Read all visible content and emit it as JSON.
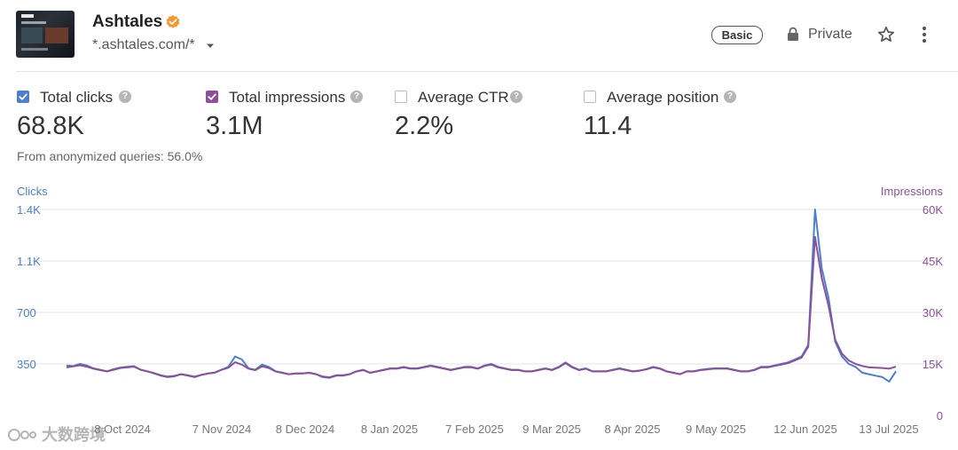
{
  "site": {
    "name": "Ashtales",
    "domain": "*.ashtales.com/*",
    "plan_badge": "Basic",
    "privacy": "Private",
    "icons": [
      "verified-badge-icon",
      "caret-down-icon",
      "lock-icon",
      "star-icon",
      "more-vertical-icon"
    ]
  },
  "metrics": [
    {
      "label": "Total clicks",
      "value": "68.8K",
      "checked": true,
      "color": "#4a7fd1"
    },
    {
      "label": "Total impressions",
      "value": "3.1M",
      "checked": true,
      "color": "#8e4f9a"
    },
    {
      "label": "Average CTR",
      "value": "2.2%",
      "checked": false
    },
    {
      "label": "Average position",
      "value": "11.4",
      "checked": false
    }
  ],
  "note": "From anonymized queries: 56.0%",
  "watermark": "大数跨境",
  "chart_data": {
    "type": "line",
    "left_axis_title": "Clicks",
    "right_axis_title": "Impressions",
    "left_ticks": [
      "350",
      "700",
      "1.1K",
      "1.4K"
    ],
    "right_ticks": [
      "0",
      "15K",
      "30K",
      "45K",
      "60K"
    ],
    "left_range": [
      0,
      1400
    ],
    "right_range": [
      0,
      60000
    ],
    "x_labels": [
      "8 Oct 2024",
      "7 Nov 2024",
      "8 Dec 2024",
      "8 Jan 2025",
      "7 Feb 2025",
      "9 Mar 2025",
      "8 Apr 2025",
      "9 May 2025",
      "12 Jun 2025",
      "13 Jul 2025"
    ],
    "series": [
      {
        "name": "Total clicks",
        "axis": "left",
        "color": "#4a7fd1",
        "values": [
          340,
          335,
          350,
          340,
          320,
          310,
          300,
          315,
          325,
          330,
          335,
          310,
          300,
          285,
          270,
          260,
          265,
          280,
          270,
          260,
          275,
          285,
          290,
          310,
          330,
          400,
          380,
          320,
          310,
          345,
          330,
          300,
          290,
          280,
          285,
          285,
          290,
          280,
          260,
          255,
          270,
          270,
          280,
          300,
          310,
          290,
          300,
          310,
          320,
          320,
          330,
          320,
          320,
          330,
          340,
          330,
          320,
          310,
          320,
          330,
          330,
          320,
          340,
          350,
          330,
          320,
          310,
          310,
          300,
          300,
          310,
          320,
          310,
          330,
          360,
          330,
          310,
          320,
          300,
          300,
          300,
          310,
          320,
          310,
          300,
          305,
          315,
          330,
          320,
          300,
          290,
          280,
          300,
          300,
          310,
          315,
          320,
          320,
          320,
          310,
          300,
          300,
          310,
          330,
          330,
          340,
          350,
          360,
          380,
          400,
          480,
          1400,
          1000,
          800,
          500,
          400,
          350,
          330,
          290,
          280,
          270,
          260,
          230,
          300
        ]
      },
      {
        "name": "Total impressions",
        "axis": "right",
        "color": "#8e4f9a",
        "values": [
          14000,
          14300,
          14600,
          14200,
          13600,
          13200,
          12800,
          13300,
          13800,
          14000,
          14200,
          13300,
          12800,
          12300,
          11700,
          11300,
          11500,
          12000,
          11700,
          11300,
          11800,
          12200,
          12500,
          13300,
          13900,
          15500,
          14800,
          13600,
          13200,
          14300,
          13800,
          12800,
          12400,
          12000,
          12200,
          12200,
          12400,
          12000,
          11300,
          11100,
          11700,
          11700,
          12000,
          12800,
          13200,
          12400,
          12800,
          13200,
          13600,
          13600,
          14000,
          13600,
          13600,
          14000,
          14400,
          14000,
          13600,
          13200,
          13600,
          14000,
          14000,
          13600,
          14400,
          14800,
          14000,
          13600,
          13200,
          13200,
          12800,
          12800,
          13200,
          13600,
          13200,
          14000,
          15200,
          14000,
          13200,
          13600,
          12800,
          12800,
          12800,
          13200,
          13600,
          13200,
          12800,
          13000,
          13400,
          14000,
          13600,
          12800,
          12400,
          12000,
          12800,
          12800,
          13200,
          13400,
          13600,
          13600,
          13600,
          13200,
          12800,
          12800,
          13200,
          14000,
          14000,
          14400,
          14800,
          15200,
          16000,
          16800,
          20000,
          52000,
          40000,
          32000,
          22000,
          18000,
          16000,
          15000,
          14400,
          14000,
          13900,
          13800,
          13600,
          14200
        ]
      }
    ],
    "grid": true
  }
}
